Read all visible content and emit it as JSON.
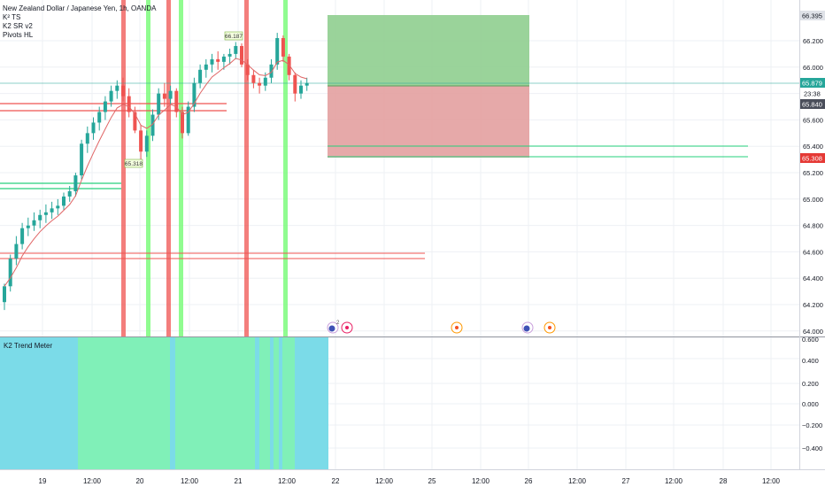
{
  "header": {
    "symbol_title": "New Zealand Dollar / Japanese Yen, 1h, OANDA",
    "indicators": [
      "K² TS",
      "K2 SR v2",
      "Pivots HL"
    ]
  },
  "sub_pane": {
    "title": "K2 Trend Meter",
    "y_ticks": [
      "0.600",
      "0.400",
      "0.200",
      "0.000",
      "−0.200",
      "−0.400"
    ]
  },
  "price_axis": {
    "ticks": [
      "66.200",
      "66.000",
      "65.800",
      "65.600",
      "65.400",
      "65.200",
      "65.000",
      "64.800",
      "64.600",
      "64.400",
      "64.200",
      "64.000"
    ],
    "badges": {
      "top_target": "66.395",
      "last_price": "65.879",
      "countdown": "23:38",
      "entry": "65.840",
      "stop": "65.308"
    }
  },
  "time_axis": {
    "labels": [
      "19",
      "12:00",
      "20",
      "12:00",
      "21",
      "12:00",
      "22",
      "12:00",
      "25",
      "12:00",
      "26",
      "12:00",
      "27",
      "12:00",
      "28",
      "12:00"
    ]
  },
  "pivot_labels": {
    "high": "66.187",
    "low": "65.318"
  },
  "events": {
    "cluster_count": "2"
  },
  "colors": {
    "bull_candle": "#26a69a",
    "bear_candle": "#ef5350",
    "red_bar": "#ef5350",
    "green_bar": "#7cfc7c",
    "profit_zone": "#8fce8f",
    "loss_zone": "#e3a0a0",
    "trend_green": "#80f0b8",
    "trend_cyan": "#7bdbe8"
  },
  "chart_data": {
    "type": "candlestick",
    "title": "New Zealand Dollar / Japanese Yen, 1h, OANDA",
    "y_range": [
      63.98,
      66.42
    ],
    "candles_ohlc": [
      [
        64.22,
        64.36,
        64.16,
        64.34
      ],
      [
        64.34,
        64.58,
        64.3,
        64.55
      ],
      [
        64.55,
        64.72,
        64.5,
        64.66
      ],
      [
        64.66,
        64.82,
        64.62,
        64.78
      ],
      [
        64.78,
        64.86,
        64.72,
        64.8
      ],
      [
        64.8,
        64.9,
        64.76,
        64.84
      ],
      [
        64.84,
        64.92,
        64.78,
        64.88
      ],
      [
        64.88,
        64.96,
        64.82,
        64.9
      ],
      [
        64.9,
        64.98,
        64.85,
        64.93
      ],
      [
        64.93,
        65.0,
        64.88,
        64.95
      ],
      [
        64.95,
        65.05,
        64.92,
        65.02
      ],
      [
        65.02,
        65.1,
        64.98,
        65.06
      ],
      [
        65.06,
        65.2,
        65.02,
        65.18
      ],
      [
        65.18,
        65.45,
        65.15,
        65.42
      ],
      [
        65.42,
        65.55,
        65.35,
        65.5
      ],
      [
        65.5,
        65.62,
        65.45,
        65.58
      ],
      [
        65.58,
        65.7,
        65.52,
        65.66
      ],
      [
        65.66,
        65.78,
        65.6,
        65.74
      ],
      [
        65.74,
        65.86,
        65.7,
        65.82
      ],
      [
        65.82,
        65.9,
        65.76,
        65.86
      ],
      [
        65.86,
        65.92,
        65.74,
        65.78
      ],
      [
        65.78,
        65.84,
        65.62,
        65.66
      ],
      [
        65.66,
        65.7,
        65.5,
        65.52
      ],
      [
        65.52,
        65.56,
        65.3,
        65.36
      ],
      [
        65.36,
        65.52,
        65.32,
        65.48
      ],
      [
        65.48,
        65.68,
        65.44,
        65.64
      ],
      [
        65.64,
        65.84,
        65.6,
        65.8
      ],
      [
        65.8,
        65.88,
        65.7,
        65.76
      ],
      [
        65.76,
        65.86,
        65.72,
        65.82
      ],
      [
        65.82,
        65.84,
        65.62,
        65.66
      ],
      [
        65.66,
        65.7,
        65.46,
        65.5
      ],
      [
        65.5,
        65.74,
        65.48,
        65.7
      ],
      [
        65.7,
        65.92,
        65.66,
        65.88
      ],
      [
        65.88,
        66.02,
        65.84,
        65.98
      ],
      [
        65.98,
        66.06,
        65.92,
        66.02
      ],
      [
        66.02,
        66.1,
        65.96,
        66.06
      ],
      [
        66.06,
        66.12,
        65.98,
        66.04
      ],
      [
        66.04,
        66.1,
        65.98,
        66.08
      ],
      [
        66.08,
        66.14,
        66.02,
        66.1
      ],
      [
        66.1,
        66.19,
        66.06,
        66.16
      ],
      [
        66.16,
        66.18,
        66.0,
        66.02
      ],
      [
        66.02,
        66.06,
        65.9,
        65.94
      ],
      [
        65.94,
        65.98,
        65.84,
        65.88
      ],
      [
        65.88,
        65.92,
        65.8,
        65.86
      ],
      [
        65.86,
        65.96,
        65.82,
        65.92
      ],
      [
        65.92,
        66.06,
        65.88,
        66.02
      ],
      [
        66.02,
        66.26,
        65.98,
        66.22
      ],
      [
        66.22,
        66.24,
        66.04,
        66.08
      ],
      [
        66.08,
        66.1,
        65.9,
        65.94
      ],
      [
        65.94,
        65.96,
        65.74,
        65.8
      ],
      [
        65.8,
        65.9,
        65.76,
        65.86
      ],
      [
        65.86,
        65.92,
        65.82,
        65.88
      ]
    ],
    "annotations": {
      "pivot_high": 66.187,
      "pivot_low": 65.318,
      "last_price": 65.879,
      "entry": 65.84,
      "target": 66.395,
      "stop": 65.308
    }
  }
}
